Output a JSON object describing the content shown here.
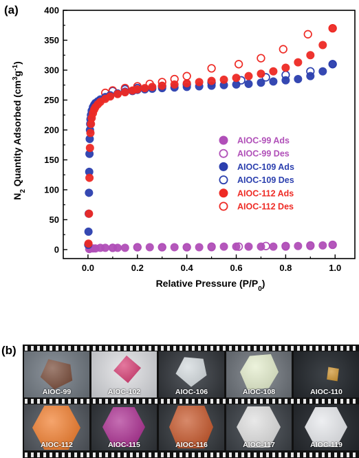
{
  "panel_a": {
    "label": "(a)"
  },
  "panel_b": {
    "label": "(b)",
    "frames": [
      {
        "caption": "AIOC-99"
      },
      {
        "caption": "AIOC-102"
      },
      {
        "caption": "AIOC-106"
      },
      {
        "caption": "AIOC-108"
      },
      {
        "caption": "AIOC-110"
      },
      {
        "caption": "AIOC-112"
      },
      {
        "caption": "AIOC-115"
      },
      {
        "caption": "AIOC-116"
      },
      {
        "caption": "AIOC-117"
      },
      {
        "caption": "AIOC-119"
      }
    ]
  },
  "chart_data": {
    "type": "scatter",
    "xlabel": "Relative Pressure (P/P0)",
    "ylabel": "N2 Quantity Adsorbed (cm3g-1)",
    "xlim": [
      -0.1,
      1.08
    ],
    "ylim": [
      -15,
      400
    ],
    "xticks": [
      0.0,
      0.2,
      0.4,
      0.6,
      0.8,
      1.0
    ],
    "xtick_labels": [
      "0.0",
      "0.2",
      "0.4",
      "0.6",
      "0.8",
      "1.0"
    ],
    "yticks": [
      0,
      50,
      100,
      150,
      200,
      250,
      300,
      350,
      400
    ],
    "ytick_labels": [
      "0",
      "50",
      "100",
      "150",
      "200",
      "250",
      "300",
      "350",
      "400"
    ],
    "legend_position": "right",
    "series": [
      {
        "name": "AIOC-99 Ads",
        "color": "#b04fb8",
        "filled": true,
        "x": [
          0.005,
          0.01,
          0.02,
          0.03,
          0.05,
          0.07,
          0.1,
          0.12,
          0.15,
          0.2,
          0.25,
          0.3,
          0.35,
          0.4,
          0.45,
          0.5,
          0.55,
          0.6,
          0.65,
          0.7,
          0.75,
          0.8,
          0.85,
          0.9,
          0.95,
          0.99
        ],
        "y": [
          1,
          2,
          2,
          2,
          3,
          3,
          3,
          3,
          3,
          4,
          4,
          4,
          4,
          4,
          4,
          4,
          5,
          5,
          5,
          5,
          5,
          5,
          6,
          6,
          7,
          8
        ]
      },
      {
        "name": "AIOC-99 Des",
        "color": "#b04fb8",
        "filled": false,
        "x": [
          0.99,
          0.9,
          0.8,
          0.72,
          0.61,
          0.5,
          0.4,
          0.3,
          0.2,
          0.1
        ],
        "y": [
          8,
          7,
          6,
          6,
          5,
          5,
          4,
          4,
          4,
          3
        ]
      },
      {
        "name": "AIOC-109 Ads",
        "color": "#2b3fae",
        "filled": true,
        "x": [
          0.001,
          0.002,
          0.003,
          0.004,
          0.005,
          0.006,
          0.007,
          0.008,
          0.009,
          0.01,
          0.012,
          0.015,
          0.02,
          0.025,
          0.03,
          0.04,
          0.05,
          0.07,
          0.09,
          0.12,
          0.15,
          0.18,
          0.2,
          0.23,
          0.26,
          0.3,
          0.35,
          0.4,
          0.45,
          0.5,
          0.55,
          0.6,
          0.65,
          0.7,
          0.75,
          0.8,
          0.85,
          0.9,
          0.95,
          0.99
        ],
        "y": [
          8,
          30,
          60,
          95,
          130,
          160,
          185,
          200,
          210,
          218,
          225,
          232,
          238,
          242,
          245,
          248,
          251,
          255,
          258,
          261,
          264,
          265,
          267,
          268,
          269,
          270,
          271,
          272,
          273,
          274,
          275,
          276,
          277,
          279,
          281,
          283,
          285,
          290,
          298,
          310
        ]
      },
      {
        "name": "AIOC-109 Des",
        "color": "#2b3fae",
        "filled": false,
        "x": [
          0.99,
          0.9,
          0.8,
          0.72,
          0.62,
          0.5,
          0.4,
          0.3,
          0.2,
          0.15,
          0.1
        ],
        "y": [
          310,
          298,
          292,
          288,
          283,
          279,
          276,
          273,
          270,
          268,
          265
        ]
      },
      {
        "name": "AIOC-112 Ads",
        "color": "#ee2a24",
        "filled": true,
        "x": [
          0.002,
          0.004,
          0.006,
          0.008,
          0.01,
          0.012,
          0.015,
          0.02,
          0.025,
          0.03,
          0.04,
          0.05,
          0.07,
          0.09,
          0.12,
          0.15,
          0.18,
          0.2,
          0.23,
          0.26,
          0.3,
          0.35,
          0.4,
          0.45,
          0.5,
          0.55,
          0.6,
          0.65,
          0.7,
          0.75,
          0.8,
          0.85,
          0.9,
          0.95,
          0.99
        ],
        "y": [
          10,
          60,
          120,
          170,
          195,
          210,
          220,
          228,
          234,
          238,
          243,
          247,
          252,
          256,
          260,
          263,
          266,
          268,
          270,
          272,
          274,
          276,
          278,
          280,
          282,
          284,
          287,
          290,
          294,
          298,
          304,
          313,
          325,
          342,
          370
        ]
      },
      {
        "name": "AIOC-112 Des",
        "color": "#ee2a24",
        "filled": false,
        "x": [
          0.99,
          0.89,
          0.79,
          0.7,
          0.61,
          0.5,
          0.4,
          0.35,
          0.3,
          0.25,
          0.2,
          0.15,
          0.1,
          0.07
        ],
        "y": [
          370,
          360,
          335,
          320,
          310,
          303,
          290,
          285,
          280,
          277,
          273,
          270,
          266,
          262
        ]
      }
    ]
  }
}
